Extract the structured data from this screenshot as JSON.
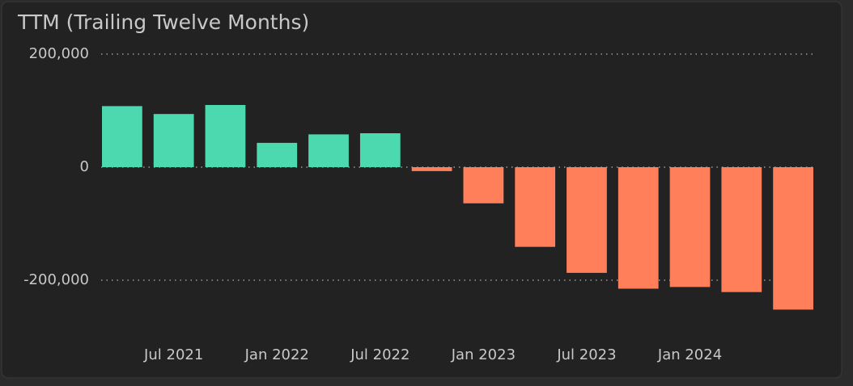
{
  "chart_data": {
    "type": "bar",
    "title": "TTM (Trailing Twelve Months)",
    "categories": [
      null,
      "Jul 2021",
      null,
      "Jan 2022",
      null,
      "Jul 2022",
      null,
      "Jan 2023",
      null,
      "Jul 2023",
      null,
      "Jan 2024",
      null,
      null
    ],
    "values": [
      108000,
      94000,
      110000,
      43000,
      58000,
      60000,
      -7000,
      -64000,
      -141000,
      -187000,
      -215000,
      -212000,
      -221000,
      -252000
    ],
    "positive_color": "#4dd9b0",
    "negative_color": "#ff7f5a",
    "ylim": [
      -260000,
      200000
    ],
    "yticks": [
      {
        "value": -200000,
        "label": "-200,000"
      },
      0,
      {
        "value": 200000,
        "label": "200,000"
      }
    ],
    "grid": true
  }
}
